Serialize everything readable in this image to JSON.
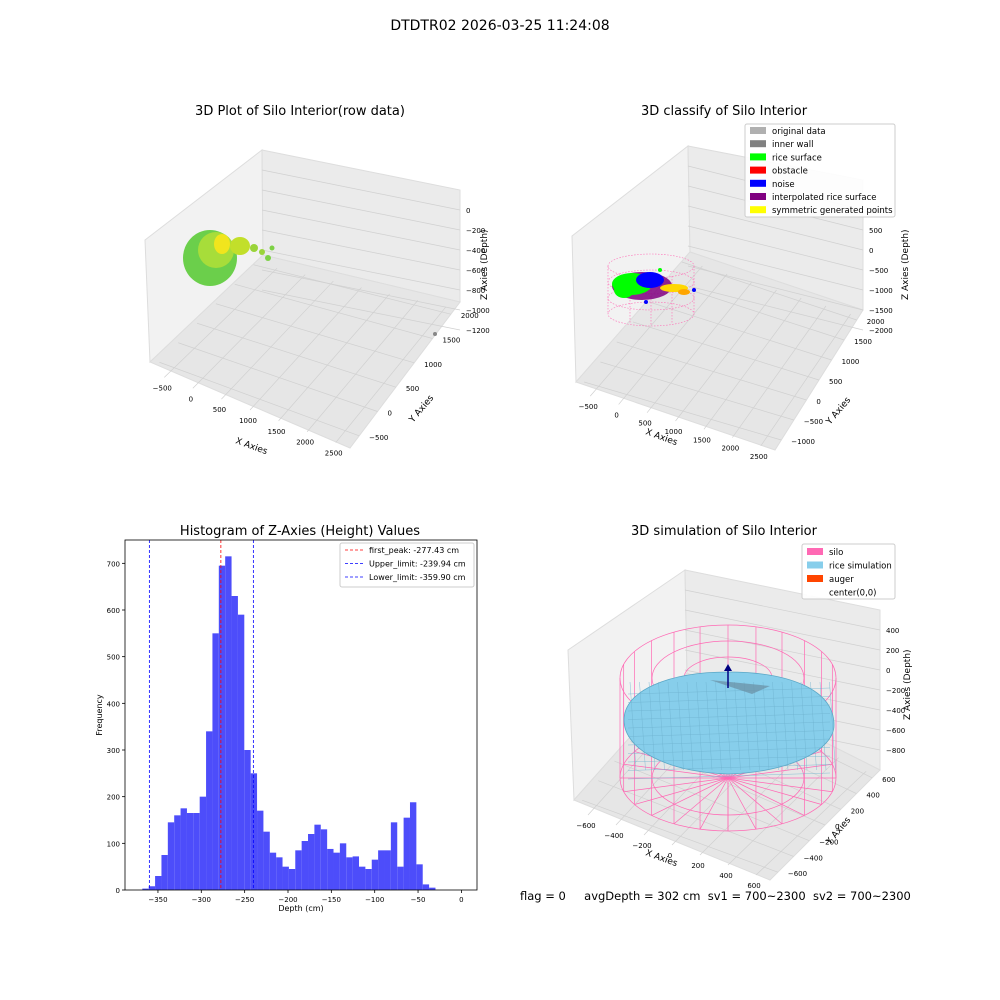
{
  "figure_title": "DTDTR02 2026-03-25 11:24:08",
  "status": {
    "flag": "flag = 0",
    "avg_depth": "avgDepth = 302 cm",
    "sv1": "sv1 = 700~2300",
    "sv2": "sv2 = 700~2300"
  },
  "colors": {
    "hist_bar": "#4d4dfa",
    "first_peak": "#ff0000",
    "limit_line": "#0000ff",
    "rice_surface": "#00ff00",
    "noise": "#0000ff",
    "obstacle": "#ff0000",
    "interpolated": "#800080",
    "symmetric": "#ffff00",
    "inner_wall": "#808080",
    "original": "#b0b0b0",
    "silo": "#ff69b4",
    "rice_sim": "#87ceeb",
    "auger": "#ff4500"
  },
  "chart_data": [
    {
      "type": "scatter",
      "dims": "3d",
      "title": "3D Plot of Silo Interior(row data)",
      "xlabel": "X Axies",
      "ylabel": "Y Axies",
      "zlabel": "Z Axies (Depth)",
      "x_ticks": [
        "−500",
        "0",
        "500",
        "1000",
        "1500",
        "2000",
        "2500"
      ],
      "y_ticks": [
        "−500",
        "0",
        "500",
        "1000",
        "1500",
        "2000"
      ],
      "z_ticks": [
        "0",
        "−200",
        "−400",
        "−600",
        "−800",
        "−1000",
        "−1200"
      ],
      "xlim": [
        -600,
        2700
      ],
      "ylim": [
        -700,
        2100
      ],
      "zlim": [
        -1300,
        0
      ]
    },
    {
      "type": "scatter",
      "dims": "3d",
      "title": "3D classify of Silo Interior",
      "xlabel": "X Axies",
      "ylabel": "Y Axies",
      "zlabel": "Z Axies (Depth)",
      "x_ticks": [
        "−500",
        "0",
        "500",
        "1000",
        "1500",
        "2000",
        "2500"
      ],
      "y_ticks": [
        "−1000",
        "−500",
        "0",
        "500",
        "1000",
        "1500",
        "2000"
      ],
      "z_ticks": [
        "1000",
        "500",
        "0",
        "−500",
        "−1000",
        "−1500",
        "−2000"
      ],
      "legend": [
        {
          "label": "original data",
          "color": "#b0b0b0"
        },
        {
          "label": "inner wall",
          "color": "#808080"
        },
        {
          "label": "rice surface",
          "color": "#00ff00"
        },
        {
          "label": "obstacle",
          "color": "#ff0000"
        },
        {
          "label": "noise",
          "color": "#0000ff"
        },
        {
          "label": "interpolated rice surface",
          "color": "#800080"
        },
        {
          "label": "symmetric generated points",
          "color": "#ffff00"
        }
      ],
      "legend_position": "top-right"
    },
    {
      "type": "bar",
      "title": "Histogram of Z-Axies (Height) Values",
      "xlabel": "Depth (cm)",
      "ylabel": "Frequency",
      "bin_start": -368,
      "bin_width": 7.35,
      "values": [
        3,
        8,
        30,
        75,
        145,
        160,
        175,
        165,
        165,
        200,
        340,
        550,
        695,
        715,
        630,
        590,
        300,
        250,
        170,
        125,
        80,
        70,
        50,
        45,
        85,
        105,
        120,
        140,
        130,
        88,
        80,
        100,
        70,
        72,
        50,
        45,
        65,
        85,
        85,
        145,
        50,
        155,
        188,
        55,
        12,
        5
      ],
      "xlim": [
        -388,
        18
      ],
      "ylim": [
        0,
        750
      ],
      "x_ticks": [
        -350,
        -300,
        -250,
        -200,
        -150,
        -100,
        -50,
        0
      ],
      "x_tick_labels": [
        "−350",
        "−300",
        "−250",
        "−200",
        "−150",
        "−100",
        "−50",
        "0"
      ],
      "y_ticks": [
        0,
        100,
        200,
        300,
        400,
        500,
        600,
        700
      ],
      "vlines": [
        {
          "label": "first_peak: -277.43 cm",
          "x": -277.43,
          "color": "#ff0000"
        },
        {
          "label": "Upper_limit: -239.94 cm",
          "x": -239.94,
          "color": "#0000ff"
        },
        {
          "label": "Lower_limit: -359.90 cm",
          "x": -359.9,
          "color": "#0000ff"
        }
      ],
      "legend_position": "top-right"
    },
    {
      "type": "surface",
      "dims": "3d",
      "title": "3D simulation of Silo Interior",
      "xlabel": "X Axies",
      "ylabel": "Y Axies",
      "zlabel": "Z Axies (Depth)",
      "x_ticks": [
        "−600",
        "−400",
        "−200",
        "0",
        "200",
        "400",
        "600"
      ],
      "y_ticks": [
        "−600",
        "−400",
        "−200",
        "0",
        "200",
        "400",
        "600"
      ],
      "z_ticks": [
        "400",
        "200",
        "0",
        "−200",
        "−400",
        "−600",
        "−800"
      ],
      "legend": [
        {
          "label": "silo",
          "color": "#ff69b4"
        },
        {
          "label": "rice simulation",
          "color": "#87ceeb"
        },
        {
          "label": "auger",
          "color": "#ff4500"
        },
        {
          "label": "center(0,0)",
          "color": "#ffffff"
        }
      ],
      "legend_position": "top-right"
    }
  ]
}
